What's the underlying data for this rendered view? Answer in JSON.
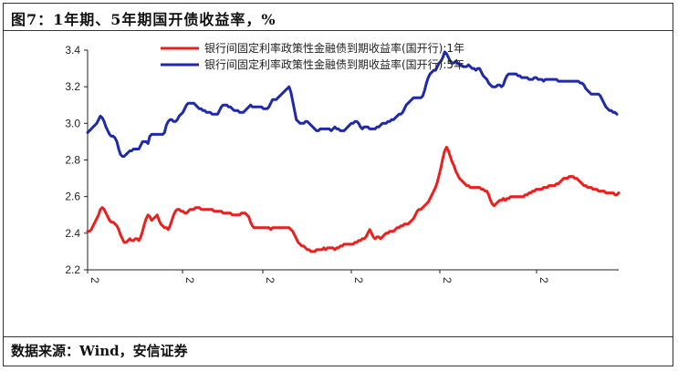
{
  "title": "图7：1年期、5年期国开债收益率，%",
  "source": "数据来源：Wind，安信证券",
  "chart_data": {
    "type": "line",
    "title": "图7：1年期、5年期国开债收益率，%",
    "xlabel": "",
    "ylabel": "",
    "ylim": [
      2.2,
      3.4
    ],
    "yticks": [
      "2.2",
      "2.4",
      "2.6",
      "2.8",
      "3.0",
      "3.2",
      "3.4"
    ],
    "xticks": [
      "2",
      "2",
      "2",
      "2",
      "2",
      "2"
    ],
    "grid": false,
    "legend_position": "top-center",
    "series": [
      {
        "name": "银行间固定利率政策性金融债到期收益率(国开行):1年",
        "color": "#e8201e",
        "values": [
          2.41,
          2.41,
          2.42,
          2.44,
          2.46,
          2.48,
          2.5,
          2.53,
          2.54,
          2.53,
          2.51,
          2.49,
          2.47,
          2.46,
          2.46,
          2.45,
          2.44,
          2.42,
          2.39,
          2.37,
          2.35,
          2.35,
          2.36,
          2.37,
          2.36,
          2.36,
          2.37,
          2.37,
          2.36,
          2.38,
          2.41,
          2.45,
          2.48,
          2.5,
          2.49,
          2.47,
          2.48,
          2.49,
          2.5,
          2.47,
          2.45,
          2.44,
          2.43,
          2.43,
          2.42,
          2.44,
          2.47,
          2.5,
          2.52,
          2.53,
          2.53,
          2.52,
          2.52,
          2.51,
          2.51,
          2.52,
          2.53,
          2.53,
          2.53,
          2.54,
          2.54,
          2.54,
          2.53,
          2.53,
          2.53,
          2.53,
          2.53,
          2.53,
          2.53,
          2.52,
          2.52,
          2.52,
          2.52,
          2.52,
          2.51,
          2.51,
          2.51,
          2.51,
          2.51,
          2.5,
          2.5,
          2.5,
          2.5,
          2.5,
          2.51,
          2.51,
          2.51,
          2.5,
          2.49,
          2.46,
          2.44,
          2.43,
          2.43,
          2.43,
          2.43,
          2.43,
          2.43,
          2.43,
          2.43,
          2.43,
          2.42,
          2.43,
          2.43,
          2.43,
          2.43,
          2.43,
          2.43,
          2.43,
          2.43,
          2.43,
          2.43,
          2.42,
          2.41,
          2.39,
          2.37,
          2.35,
          2.34,
          2.33,
          2.33,
          2.32,
          2.31,
          2.31,
          2.3,
          2.3,
          2.3,
          2.31,
          2.31,
          2.31,
          2.31,
          2.32,
          2.31,
          2.32,
          2.32,
          2.32,
          2.32,
          2.31,
          2.32,
          2.32,
          2.33,
          2.33,
          2.34,
          2.34,
          2.34,
          2.34,
          2.34,
          2.34,
          2.35,
          2.35,
          2.36,
          2.36,
          2.37,
          2.37,
          2.38,
          2.4,
          2.42,
          2.4,
          2.38,
          2.37,
          2.38,
          2.38,
          2.37,
          2.38,
          2.39,
          2.4,
          2.4,
          2.41,
          2.41,
          2.41,
          2.42,
          2.43,
          2.43,
          2.44,
          2.44,
          2.45,
          2.45,
          2.45,
          2.46,
          2.47,
          2.48,
          2.5,
          2.52,
          2.53,
          2.53,
          2.54,
          2.55,
          2.56,
          2.57,
          2.59,
          2.61,
          2.63,
          2.65,
          2.68,
          2.72,
          2.76,
          2.81,
          2.85,
          2.87,
          2.85,
          2.82,
          2.79,
          2.77,
          2.74,
          2.72,
          2.7,
          2.69,
          2.68,
          2.67,
          2.66,
          2.66,
          2.65,
          2.65,
          2.65,
          2.65,
          2.65,
          2.65,
          2.64,
          2.64,
          2.63,
          2.63,
          2.61,
          2.58,
          2.56,
          2.55,
          2.56,
          2.57,
          2.58,
          2.58,
          2.59,
          2.58,
          2.59,
          2.59,
          2.6,
          2.6,
          2.6,
          2.6,
          2.6,
          2.6,
          2.6,
          2.6,
          2.61,
          2.61,
          2.62,
          2.62,
          2.63,
          2.63,
          2.64,
          2.64,
          2.64,
          2.64,
          2.65,
          2.65,
          2.65,
          2.66,
          2.66,
          2.66,
          2.66,
          2.67,
          2.67,
          2.68,
          2.69,
          2.7,
          2.7,
          2.7,
          2.71,
          2.71,
          2.71,
          2.7,
          2.7,
          2.69,
          2.68,
          2.67,
          2.66,
          2.66,
          2.65,
          2.65,
          2.65,
          2.64,
          2.64,
          2.64,
          2.63,
          2.63,
          2.63,
          2.63,
          2.62,
          2.62,
          2.62,
          2.62,
          2.62,
          2.61,
          2.61,
          2.62
        ]
      },
      {
        "name": "银行间固定利率政策性金融债到期收益率(国开行):5年",
        "color": "#1f2aa8",
        "values": [
          2.95,
          2.96,
          2.97,
          2.98,
          2.99,
          3.0,
          3.02,
          3.04,
          3.03,
          3.01,
          2.98,
          2.96,
          2.94,
          2.93,
          2.93,
          2.92,
          2.9,
          2.86,
          2.83,
          2.82,
          2.82,
          2.83,
          2.84,
          2.85,
          2.85,
          2.86,
          2.86,
          2.86,
          2.86,
          2.88,
          2.9,
          2.9,
          2.9,
          2.89,
          2.93,
          2.94,
          2.94,
          2.94,
          2.94,
          2.94,
          2.94,
          2.94,
          2.95,
          2.99,
          3.01,
          3.02,
          3.02,
          3.01,
          3.01,
          3.02,
          3.04,
          3.05,
          3.06,
          3.08,
          3.1,
          3.11,
          3.11,
          3.11,
          3.11,
          3.1,
          3.09,
          3.08,
          3.08,
          3.07,
          3.07,
          3.06,
          3.06,
          3.06,
          3.05,
          3.05,
          3.05,
          3.05,
          3.07,
          3.09,
          3.1,
          3.1,
          3.1,
          3.09,
          3.09,
          3.08,
          3.07,
          3.07,
          3.07,
          3.06,
          3.06,
          3.06,
          3.07,
          3.08,
          3.09,
          3.1,
          3.09,
          3.09,
          3.09,
          3.09,
          3.09,
          3.09,
          3.08,
          3.08,
          3.08,
          3.09,
          3.11,
          3.13,
          3.13,
          3.13,
          3.14,
          3.15,
          3.16,
          3.17,
          3.18,
          3.19,
          3.2,
          3.17,
          3.12,
          3.07,
          3.02,
          3.01,
          3.0,
          3.0,
          3.0,
          3.01,
          3.01,
          3.0,
          2.99,
          2.98,
          2.97,
          2.96,
          2.96,
          2.97,
          2.97,
          2.97,
          2.97,
          2.97,
          2.97,
          2.96,
          2.97,
          2.98,
          2.97,
          2.97,
          2.96,
          2.96,
          2.96,
          2.97,
          2.98,
          2.99,
          3.0,
          3.0,
          3.01,
          3.01,
          3.0,
          2.98,
          2.97,
          2.98,
          2.98,
          2.98,
          2.97,
          2.97,
          2.97,
          2.97,
          2.98,
          2.98,
          2.99,
          3.0,
          3.0,
          3.0,
          3.01,
          3.01,
          3.02,
          3.02,
          3.03,
          3.04,
          3.05,
          3.05,
          3.06,
          3.08,
          3.1,
          3.11,
          3.12,
          3.13,
          3.14,
          3.14,
          3.14,
          3.14,
          3.14,
          3.15,
          3.18,
          3.22,
          3.25,
          3.27,
          3.28,
          3.29,
          3.29,
          3.31,
          3.33,
          3.34,
          3.36,
          3.39,
          3.38,
          3.36,
          3.34,
          3.33,
          3.33,
          3.34,
          3.33,
          3.32,
          3.32,
          3.31,
          3.31,
          3.31,
          3.32,
          3.31,
          3.3,
          3.3,
          3.29,
          3.3,
          3.3,
          3.28,
          3.26,
          3.25,
          3.24,
          3.22,
          3.21,
          3.2,
          3.2,
          3.2,
          3.21,
          3.21,
          3.2,
          3.21,
          3.24,
          3.26,
          3.27,
          3.27,
          3.27,
          3.27,
          3.27,
          3.26,
          3.26,
          3.25,
          3.25,
          3.25,
          3.25,
          3.24,
          3.24,
          3.24,
          3.25,
          3.25,
          3.24,
          3.24,
          3.24,
          3.23,
          3.24,
          3.24,
          3.24,
          3.24,
          3.24,
          3.24,
          3.24,
          3.23,
          3.23,
          3.23,
          3.23,
          3.23,
          3.23,
          3.23,
          3.23,
          3.23,
          3.23,
          3.23,
          3.23,
          3.22,
          3.22,
          3.21,
          3.19,
          3.18,
          3.17,
          3.16,
          3.16,
          3.16,
          3.16,
          3.16,
          3.15,
          3.13,
          3.11,
          3.09,
          3.08,
          3.07,
          3.07,
          3.06,
          3.06,
          3.05
        ]
      }
    ]
  }
}
